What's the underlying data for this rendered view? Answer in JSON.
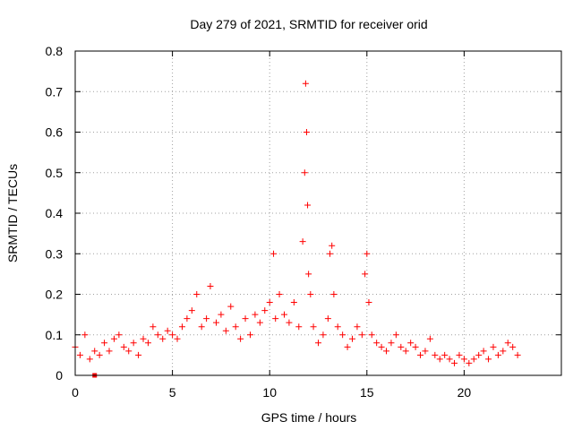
{
  "chart_data": {
    "type": "scatter",
    "title": "Day 279 of 2021, SRMTID for receiver orid",
    "xlabel": "GPS time / hours",
    "ylabel": "SRMTID / TECUs",
    "xlim": [
      0,
      25
    ],
    "ylim": [
      0,
      0.8
    ],
    "x_ticks": [
      "0",
      "5",
      "10",
      "15",
      "20"
    ],
    "y_ticks": [
      "0",
      "0.1",
      "0.2",
      "0.3",
      "0.4",
      "0.5",
      "0.6",
      "0.7",
      "0.8"
    ],
    "grid": true,
    "marker": "plus",
    "color": "#ff0000",
    "series": [
      {
        "name": "SRMTID",
        "x": [
          0.0,
          0.25,
          0.5,
          0.75,
          1.0,
          1.25,
          1.5,
          1.75,
          2.0,
          2.25,
          2.5,
          2.75,
          3.0,
          3.25,
          3.5,
          3.75,
          4.0,
          4.25,
          4.5,
          4.75,
          5.0,
          5.25,
          5.5,
          5.75,
          6.0,
          6.25,
          6.5,
          6.75,
          6.95,
          7.25,
          7.5,
          7.75,
          8.0,
          8.25,
          8.5,
          8.75,
          9.0,
          9.25,
          9.5,
          9.75,
          10.0,
          10.2,
          10.3,
          10.5,
          10.75,
          11.0,
          11.25,
          11.5,
          11.7,
          11.8,
          11.85,
          11.9,
          11.95,
          12.0,
          12.1,
          12.25,
          12.5,
          12.75,
          13.0,
          13.1,
          13.2,
          13.3,
          13.5,
          13.75,
          14.0,
          14.25,
          14.5,
          14.75,
          14.9,
          15.0,
          15.1,
          15.25,
          15.5,
          15.75,
          16.0,
          16.25,
          16.5,
          16.75,
          17.0,
          17.25,
          17.5,
          17.75,
          18.0,
          18.25,
          18.5,
          18.75,
          19.0,
          19.25,
          19.5,
          19.75,
          20.0,
          20.25,
          20.5,
          20.75,
          21.0,
          21.25,
          21.5,
          21.75,
          22.0,
          22.25,
          22.5,
          22.75
        ],
        "y": [
          0.07,
          0.05,
          0.1,
          0.04,
          0.06,
          0.05,
          0.08,
          0.06,
          0.09,
          0.1,
          0.07,
          0.06,
          0.08,
          0.05,
          0.09,
          0.08,
          0.12,
          0.1,
          0.09,
          0.11,
          0.1,
          0.09,
          0.12,
          0.14,
          0.16,
          0.2,
          0.12,
          0.14,
          0.22,
          0.13,
          0.15,
          0.11,
          0.17,
          0.12,
          0.09,
          0.14,
          0.1,
          0.15,
          0.13,
          0.16,
          0.18,
          0.3,
          0.14,
          0.2,
          0.15,
          0.13,
          0.18,
          0.12,
          0.33,
          0.5,
          0.72,
          0.6,
          0.42,
          0.25,
          0.2,
          0.12,
          0.08,
          0.1,
          0.14,
          0.3,
          0.32,
          0.2,
          0.12,
          0.1,
          0.07,
          0.09,
          0.12,
          0.1,
          0.25,
          0.3,
          0.18,
          0.1,
          0.08,
          0.07,
          0.06,
          0.08,
          0.1,
          0.07,
          0.06,
          0.08,
          0.07,
          0.05,
          0.06,
          0.09,
          0.05,
          0.04,
          0.05,
          0.04,
          0.03,
          0.05,
          0.04,
          0.03,
          0.04,
          0.05,
          0.06,
          0.04,
          0.07,
          0.05,
          0.06,
          0.08,
          0.07,
          0.05
        ],
        "outlier": {
          "x": 1.0,
          "y": 0.0
        }
      }
    ]
  }
}
